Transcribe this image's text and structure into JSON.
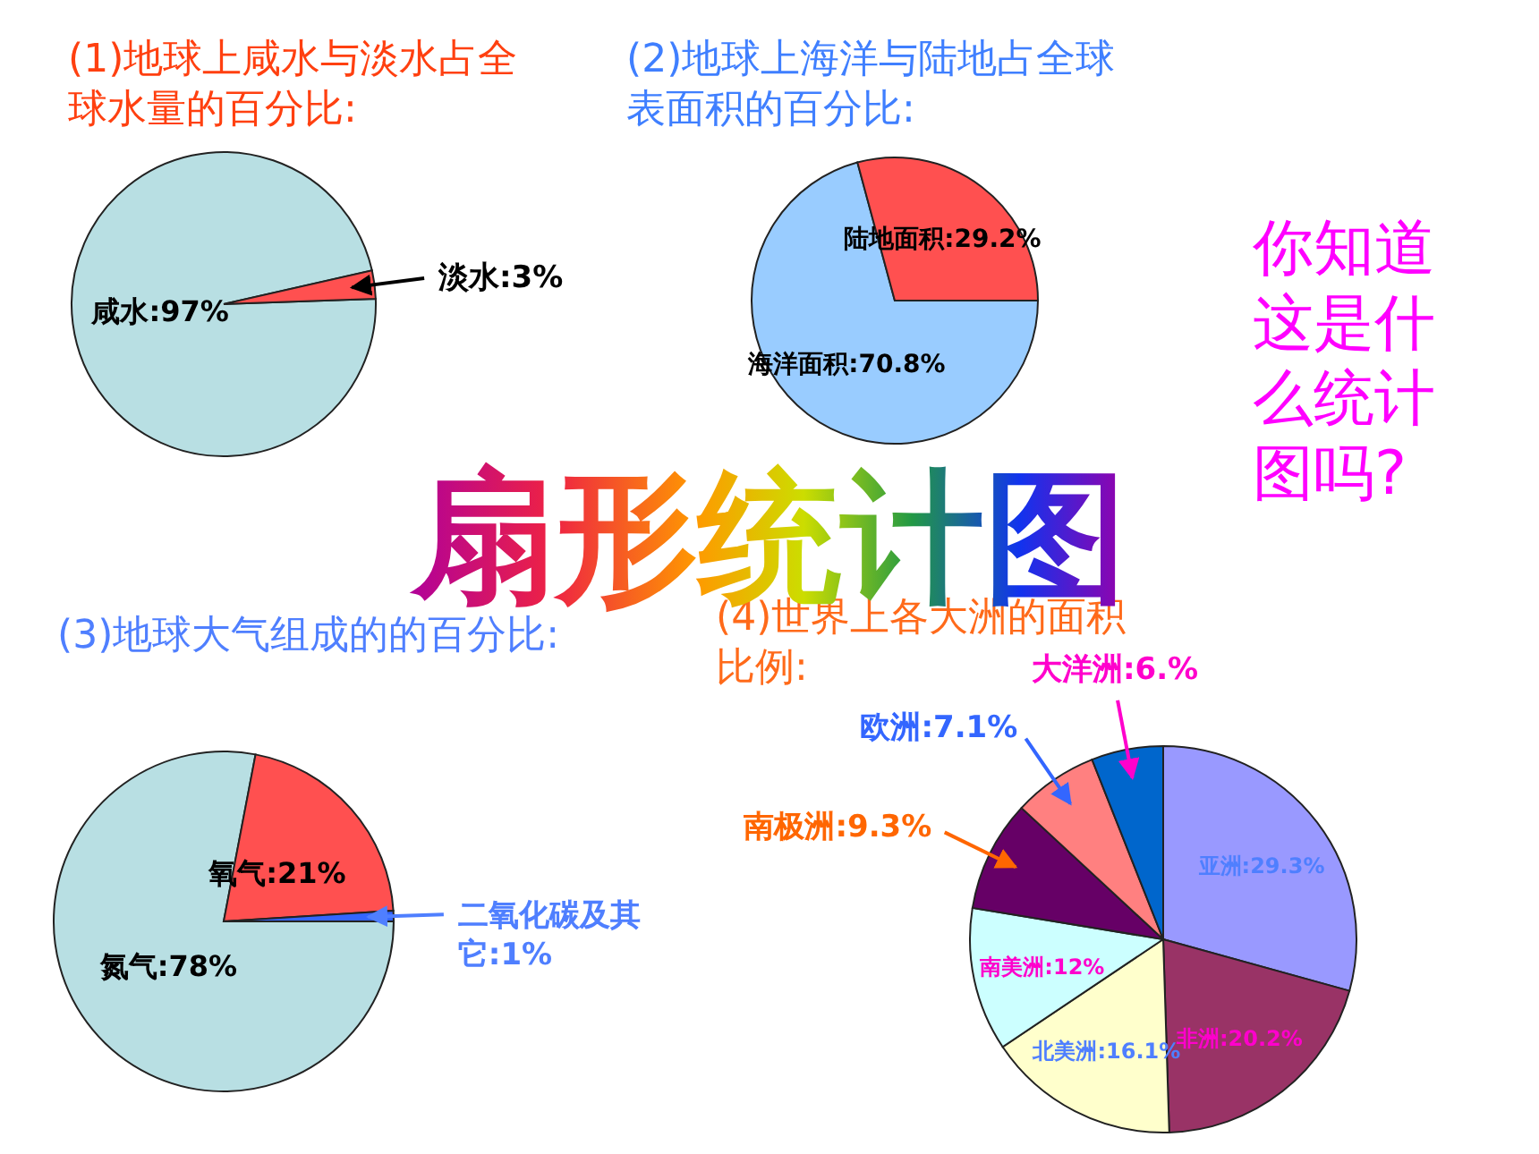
{
  "chart_data": [
    {
      "type": "pie",
      "title": "(1)地球上咸水与淡水占全球水量的百分比:",
      "categories": [
        "咸水",
        "淡水"
      ],
      "values": [
        97,
        3
      ],
      "value_labels": [
        "97%",
        "3%"
      ],
      "colors": [
        "#b8dfe3",
        "#ff5050"
      ]
    },
    {
      "type": "pie",
      "title": "(2)地球上海洋与陆地占全球表面积的百分比:",
      "categories": [
        "海洋面积",
        "陆地面积"
      ],
      "values": [
        70.8,
        29.2
      ],
      "value_labels": [
        "70.8%",
        "29.2%"
      ],
      "colors": [
        "#99ccff",
        "#ff5050"
      ]
    },
    {
      "type": "pie",
      "title": "(3)地球大气组成的的百分比:",
      "categories": [
        "氮气",
        "氧气",
        "二氧化碳及其它"
      ],
      "values": [
        78,
        21,
        1
      ],
      "value_labels": [
        "78%",
        "21%",
        "1%"
      ],
      "colors": [
        "#b8dfe3",
        "#ff5050",
        "#3366ff"
      ]
    },
    {
      "type": "pie",
      "title": "(4)世界上各大洲的面积比例:",
      "categories": [
        "亚洲",
        "非洲",
        "北美洲",
        "南美洲",
        "南极洲",
        "欧洲",
        "大洋洲"
      ],
      "values": [
        29.3,
        20.2,
        16.1,
        12,
        9.3,
        7.1,
        6
      ],
      "value_labels": [
        "29.3%",
        "20.2%",
        "16.1%",
        "12%",
        "9.3%",
        "7.1%",
        "6.%"
      ],
      "colors": [
        "#9999ff",
        "#993366",
        "#ffffcc",
        "#ccffff",
        "#660066",
        "#ff8080",
        "#0066cc"
      ]
    },
    {
      "type": "other",
      "title": "扇形统计图",
      "annotations": [
        "你知道这是什么统计图吗?"
      ]
    }
  ]
}
